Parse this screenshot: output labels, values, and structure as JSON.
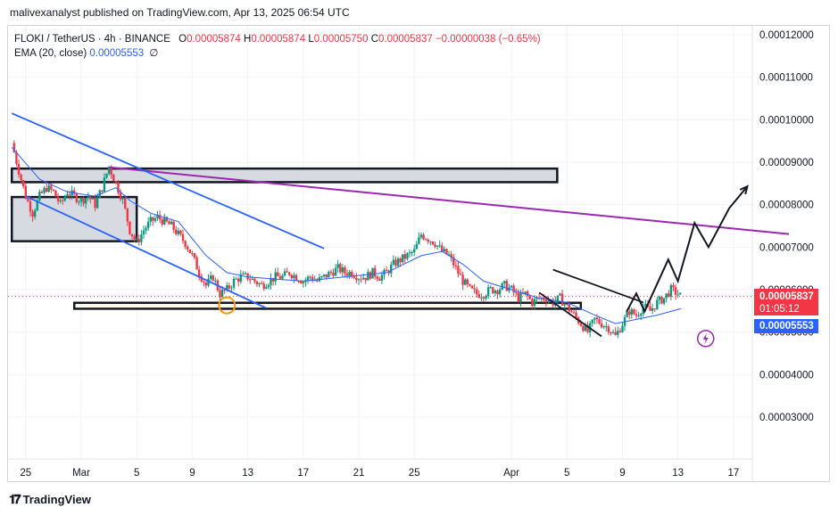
{
  "header": {
    "publisher_line": "malivexanalyst published on TradingView.com, Apr 13, 2025 06:54 UTC"
  },
  "legend": {
    "symbol": "FLOKI / TetherUS · 4h · BINANCE",
    "o_label": "O",
    "o_value": "0.00005874",
    "h_label": "H",
    "h_value": "0.00005874",
    "l_label": "L",
    "l_value": "0.00005750",
    "c_label": "C",
    "c_value": "0.00005837",
    "change": "−0.00000038 (−0.65%)",
    "ema_label": "EMA (20, close)",
    "ema_value": "0.00005553",
    "ema_extra": "∅"
  },
  "price_badges": {
    "last_price": "0.00005837",
    "countdown": "01:05:12",
    "ema_price": "0.00005553",
    "last_color": "#f23645",
    "ema_color": "#2962ff"
  },
  "footer": {
    "brand": "TradingView"
  },
  "colors": {
    "up": "#089981",
    "down": "#f23645",
    "ema": "#2962ff",
    "trendline": "#9c27b0",
    "channel": "#2962ff"
  },
  "chart_data": {
    "type": "candlestick",
    "ylim": [
      2.5e-05,
      1.25e-05
    ],
    "y_ticks": [
      "0.00012000",
      "0.00011000",
      "0.00010000",
      "0.00009000",
      "0.00008000",
      "0.00007000",
      "0.00006000",
      "0.00005000",
      "0.00004000",
      "0.00003000"
    ],
    "y_tick_values": [
      0.00012,
      0.00011,
      0.0001,
      9e-05,
      8e-05,
      7e-05,
      6e-05,
      5e-05,
      4e-05,
      3e-05
    ],
    "x_ticks": [
      "25",
      "Mar",
      "5",
      "9",
      "13",
      "17",
      "21",
      "25",
      "Apr",
      "5",
      "9",
      "13",
      "17"
    ],
    "x_tick_days": [
      -4,
      0,
      4,
      8,
      12,
      16,
      20,
      24,
      31,
      35,
      39,
      43,
      47
    ],
    "close_path": [
      [
        -5.0,
        9.45e-05
      ],
      [
        -4.5,
        8.8e-05
      ],
      [
        -4.0,
        8.2e-05
      ],
      [
        -3.5,
        7.8e-05
      ],
      [
        -3.0,
        8.2e-05
      ],
      [
        -2.5,
        8.4e-05
      ],
      [
        -2.0,
        8.3e-05
      ],
      [
        -1.5,
        8e-05
      ],
      [
        -1.0,
        8.3e-05
      ],
      [
        -0.5,
        8.2e-05
      ],
      [
        0.0,
        8.1e-05
      ],
      [
        0.5,
        8.2e-05
      ],
      [
        1.0,
        8e-05
      ],
      [
        1.5,
        8.4e-05
      ],
      [
        2.0,
        8.9e-05
      ],
      [
        2.5,
        8.5e-05
      ],
      [
        3.0,
        8.1e-05
      ],
      [
        3.5,
        7.4e-05
      ],
      [
        4.0,
        7.1e-05
      ],
      [
        4.5,
        7.4e-05
      ],
      [
        5.0,
        7.6e-05
      ],
      [
        5.5,
        7.7e-05
      ],
      [
        6.0,
        7.6e-05
      ],
      [
        6.5,
        7.5e-05
      ],
      [
        7.0,
        7.3e-05
      ],
      [
        7.5,
        7.1e-05
      ],
      [
        8.0,
        6.8e-05
      ],
      [
        8.5,
        6.4e-05
      ],
      [
        9.0,
        6.1e-05
      ],
      [
        9.5,
        6.3e-05
      ],
      [
        10.0,
        5.9e-05
      ],
      [
        10.5,
        6e-05
      ],
      [
        11.0,
        6.2e-05
      ],
      [
        11.5,
        6.3e-05
      ],
      [
        12.0,
        6.3e-05
      ],
      [
        12.5,
        6.2e-05
      ],
      [
        13.0,
        6.1e-05
      ],
      [
        13.5,
        6.2e-05
      ],
      [
        14.0,
        6.3e-05
      ],
      [
        14.5,
        6.3e-05
      ],
      [
        15.0,
        6.4e-05
      ],
      [
        15.5,
        6.3e-05
      ],
      [
        16.0,
        6.2e-05
      ],
      [
        16.5,
        6.3e-05
      ],
      [
        17.0,
        6.2e-05
      ],
      [
        17.5,
        6.3e-05
      ],
      [
        18.0,
        6.4e-05
      ],
      [
        18.5,
        6.5e-05
      ],
      [
        19.0,
        6.4e-05
      ],
      [
        19.5,
        6.4e-05
      ],
      [
        20.0,
        6.3e-05
      ],
      [
        20.5,
        6.3e-05
      ],
      [
        21.0,
        6.4e-05
      ],
      [
        21.5,
        6.3e-05
      ],
      [
        22.0,
        6.4e-05
      ],
      [
        22.5,
        6.6e-05
      ],
      [
        23.0,
        6.7e-05
      ],
      [
        23.5,
        6.8e-05
      ],
      [
        24.0,
        6.9e-05
      ],
      [
        24.5,
        7.3e-05
      ],
      [
        25.0,
        7.2e-05
      ],
      [
        25.5,
        7.1e-05
      ],
      [
        26.0,
        6.9e-05
      ],
      [
        26.5,
        6.8e-05
      ],
      [
        27.0,
        6.5e-05
      ],
      [
        27.5,
        6.2e-05
      ],
      [
        28.0,
        6e-05
      ],
      [
        28.5,
        5.9e-05
      ],
      [
        29.0,
        5.9e-05
      ],
      [
        29.5,
        6e-05
      ],
      [
        30.0,
        6e-05
      ],
      [
        30.5,
        6.1e-05
      ],
      [
        31.0,
        6e-05
      ],
      [
        31.5,
        5.8e-05
      ],
      [
        32.0,
        5.9e-05
      ],
      [
        32.5,
        5.7e-05
      ],
      [
        33.0,
        5.8e-05
      ],
      [
        33.5,
        5.8e-05
      ],
      [
        34.0,
        5.7e-05
      ],
      [
        34.5,
        5.8e-05
      ],
      [
        35.0,
        5.6e-05
      ],
      [
        35.5,
        5.4e-05
      ],
      [
        36.0,
        5.2e-05
      ],
      [
        36.5,
        5e-05
      ],
      [
        37.0,
        5.3e-05
      ],
      [
        37.5,
        5.2e-05
      ],
      [
        38.0,
        5.1e-05
      ],
      [
        38.5,
        4.9e-05
      ],
      [
        39.0,
        5.2e-05
      ],
      [
        39.5,
        5.5e-05
      ],
      [
        40.0,
        5.4e-05
      ],
      [
        40.5,
        5.6e-05
      ],
      [
        41.0,
        5.5e-05
      ],
      [
        41.5,
        5.7e-05
      ],
      [
        42.0,
        5.8e-05
      ],
      [
        42.5,
        6e-05
      ],
      [
        43.0,
        5.9e-05
      ],
      [
        43.2,
        5.84e-05
      ]
    ],
    "ema_path": [
      [
        -5.0,
        9.35e-05
      ],
      [
        -3.0,
        8.6e-05
      ],
      [
        -1.0,
        8.3e-05
      ],
      [
        1.0,
        8.2e-05
      ],
      [
        2.5,
        8.4e-05
      ],
      [
        3.5,
        8.1e-05
      ],
      [
        5.0,
        7.8e-05
      ],
      [
        7.0,
        7.6e-05
      ],
      [
        9.0,
        6.8e-05
      ],
      [
        10.5,
        6.4e-05
      ],
      [
        12.0,
        6.3e-05
      ],
      [
        16.0,
        6.2e-05
      ],
      [
        19.0,
        6.3e-05
      ],
      [
        22.0,
        6.4e-05
      ],
      [
        24.5,
        6.8e-05
      ],
      [
        26.0,
        6.9e-05
      ],
      [
        27.5,
        6.6e-05
      ],
      [
        29.0,
        6.2e-05
      ],
      [
        31.0,
        6e-05
      ],
      [
        33.0,
        5.8e-05
      ],
      [
        35.0,
        5.7e-05
      ],
      [
        37.0,
        5.4e-05
      ],
      [
        38.5,
        5.2e-05
      ],
      [
        40.0,
        5.3e-05
      ],
      [
        41.5,
        5.4e-05
      ],
      [
        43.2,
        5.55e-05
      ]
    ],
    "drawings": {
      "zones": [
        {
          "name": "upper-resistance-zone",
          "x": [
            -5.0,
            34.3
          ],
          "y": [
            8.53e-05,
            8.85e-05
          ]
        },
        {
          "name": "left-gray-zone",
          "x": [
            -5.0,
            4.0
          ],
          "y": [
            7.14e-05,
            8.18e-05
          ]
        },
        {
          "name": "support-zone",
          "x": [
            -0.5,
            36.0
          ],
          "y": [
            5.55e-05,
            5.69e-05
          ]
        }
      ],
      "lines": [
        {
          "name": "descending-trendline",
          "color": "#9c27b0",
          "points": [
            [
              2.0,
              8.88e-05
            ],
            [
              51.0,
              7.31e-05
            ]
          ]
        },
        {
          "name": "channel-upper-line",
          "color": "#2962ff",
          "points": [
            [
              -5.0,
              0.0001015
            ],
            [
              17.5,
              6.97e-05
            ]
          ]
        },
        {
          "name": "channel-lower-line",
          "color": "#2962ff",
          "points": [
            [
              -4.0,
              8.2e-05
            ],
            [
              13.3,
              5.57e-05
            ]
          ]
        },
        {
          "name": "wedge-upper-line",
          "color": "#131722",
          "points": [
            [
              34.0,
              6.47e-05
            ],
            [
              40.5,
              5.7e-05
            ]
          ]
        },
        {
          "name": "wedge-lower-line",
          "color": "#131722",
          "points": [
            [
              33.0,
              5.93e-05
            ],
            [
              37.5,
              4.9e-05
            ]
          ]
        },
        {
          "name": "projection-path",
          "color": "#131722",
          "points": [
            [
              39.3,
              5.48e-05
            ],
            [
              40.0,
              5.91e-05
            ],
            [
              40.6,
              5.49e-05
            ],
            [
              42.3,
              6.71e-05
            ],
            [
              43.0,
              6.2e-05
            ],
            [
              44.2,
              7.57e-05
            ],
            [
              45.2,
              7e-05
            ],
            [
              46.7,
              7.92e-05
            ],
            [
              48.0,
              8.43e-05
            ]
          ]
        }
      ],
      "markers": [
        {
          "name": "touch-circle",
          "x": 10.5,
          "y": 5.63e-05
        },
        {
          "name": "flash-icon",
          "x": 45.0,
          "y": 4.85e-05
        }
      ]
    }
  }
}
